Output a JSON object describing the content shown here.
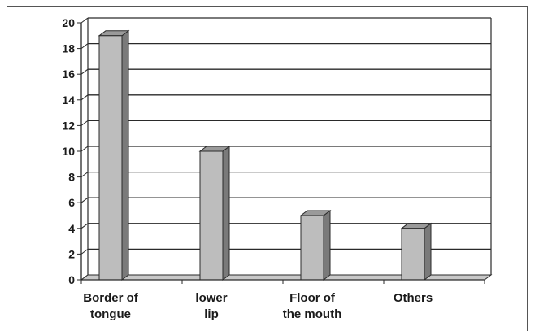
{
  "chart_data": {
    "type": "bar",
    "categories": [
      [
        "Border of",
        "tongue"
      ],
      [
        "lower",
        "lip"
      ],
      [
        "Floor of",
        "the mouth"
      ],
      [
        "Others"
      ]
    ],
    "values": [
      19,
      10,
      5,
      4
    ],
    "title": "",
    "xlabel": "",
    "ylabel": "",
    "ylim": [
      0,
      20
    ],
    "yticks": [
      0,
      2,
      4,
      6,
      8,
      10,
      12,
      14,
      16,
      18,
      20
    ],
    "grid": true,
    "style": "3d",
    "colors": {
      "bar_front": "#bdbdbd",
      "bar_side": "#7a7a7a",
      "bar_top": "#9a9a9a",
      "grid": "#2a2a2a",
      "floor": "#c8c8c8"
    }
  }
}
